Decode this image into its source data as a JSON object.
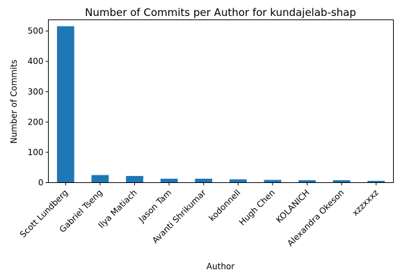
{
  "chart_data": {
    "type": "bar",
    "title": "Number of Commits per Author for kundajelab-shap",
    "xlabel": "Author",
    "ylabel": "Number of Commits",
    "categories": [
      "Scott Lundberg",
      "Gabriel Tseng",
      "Ilya Matiach",
      "Jason Tam",
      "Avanti Shrikumar",
      "kodonnell",
      "Hugh Chen",
      "KOLANICH",
      "Alexandra Okeson",
      "xzzxxxz"
    ],
    "values": [
      516,
      25,
      22,
      13,
      13,
      11,
      9,
      8,
      8,
      6
    ],
    "ylim": [
      0,
      537
    ],
    "yticks": [
      0,
      100,
      200,
      300,
      400,
      500
    ],
    "bar_color": "#1f77b4",
    "grid": false,
    "legend": "none"
  }
}
